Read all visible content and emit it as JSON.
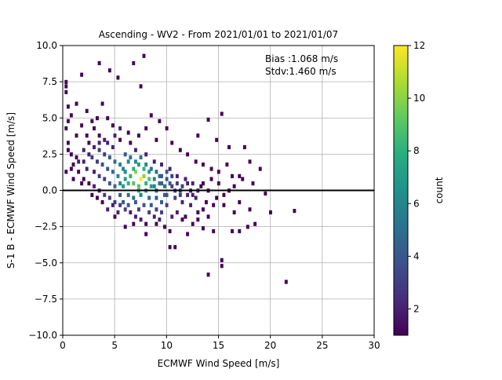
{
  "chart_data": {
    "type": "heatmap",
    "title": "Ascending - WV2 - From 2021/01/01 to 2021/01/07",
    "xlabel": "ECMWF Wind Speed [m/s]",
    "ylabel": "S-1 B - ECMWF Wind Speed [m/s]",
    "xlim": [
      0,
      30
    ],
    "ylim": [
      -10,
      10
    ],
    "x_ticks": [
      "0",
      "5",
      "10",
      "15",
      "20",
      "25",
      "30"
    ],
    "y_ticks": [
      "−10.0",
      "−7.5",
      "−5.0",
      "−2.5",
      "0.0",
      "2.5",
      "5.0",
      "7.5",
      "10.0"
    ],
    "grid": true,
    "reference_line_y": 0,
    "annotation": {
      "bias": "Bias :1.068 m/s",
      "stdv": "Stdv:1.460 m/s"
    },
    "colorbar": {
      "label": "count",
      "min": 1,
      "max": 12,
      "ticks": [
        "2",
        "4",
        "6",
        "8",
        "10",
        "12"
      ],
      "colormap": "viridis"
    },
    "bins": {
      "x_width": 0.25,
      "y_width": 0.25,
      "cells": [
        [
          0.3,
          7.5,
          1
        ],
        [
          0.3,
          7.2,
          1
        ],
        [
          0.3,
          6.8,
          1
        ],
        [
          0.5,
          5.8,
          1
        ],
        [
          0.8,
          5.2,
          1
        ],
        [
          0.5,
          4.8,
          1
        ],
        [
          0.3,
          4.3,
          1
        ],
        [
          1.8,
          8.0,
          1
        ],
        [
          3.5,
          8.8,
          1
        ],
        [
          4.5,
          8.3,
          1
        ],
        [
          6.8,
          8.8,
          1
        ],
        [
          7.8,
          9.3,
          1
        ],
        [
          5.3,
          7.8,
          1
        ],
        [
          7.5,
          7.2,
          1
        ],
        [
          1.3,
          6.0,
          1
        ],
        [
          2.3,
          5.5,
          1
        ],
        [
          3.8,
          6.0,
          1
        ],
        [
          4.3,
          5.0,
          1
        ],
        [
          8.5,
          5.2,
          1
        ],
        [
          9.3,
          4.8,
          1
        ],
        [
          14.0,
          4.9,
          1
        ],
        [
          15.3,
          5.3,
          1
        ],
        [
          10.0,
          4.3,
          1
        ],
        [
          13.0,
          3.8,
          1
        ],
        [
          14.8,
          3.5,
          1
        ],
        [
          16.0,
          3.0,
          1
        ],
        [
          17.5,
          3.0,
          1
        ],
        [
          18.0,
          2.0,
          1
        ],
        [
          19.0,
          1.5,
          1
        ],
        [
          17.0,
          1.0,
          1
        ],
        [
          18.3,
          0.5,
          1
        ],
        [
          19.5,
          -0.2,
          1
        ],
        [
          20.0,
          -1.5,
          1
        ],
        [
          22.3,
          -1.4,
          1
        ],
        [
          21.5,
          -6.3,
          1
        ],
        [
          14.0,
          -5.8,
          1
        ],
        [
          15.3,
          -4.8,
          1
        ],
        [
          15.3,
          -5.2,
          1
        ],
        [
          10.3,
          -3.9,
          1
        ],
        [
          10.8,
          -3.9,
          1
        ],
        [
          12.0,
          -3.0,
          1
        ],
        [
          13.5,
          -2.6,
          1
        ],
        [
          14.5,
          -2.8,
          1
        ],
        [
          16.3,
          -2.8,
          1
        ],
        [
          17.0,
          -2.8,
          1
        ],
        [
          17.8,
          -2.5,
          1
        ],
        [
          18.5,
          -2.3,
          1
        ],
        [
          18.0,
          -1.3,
          1
        ],
        [
          16.5,
          -1.5,
          1
        ],
        [
          15.5,
          -1.0,
          1
        ],
        [
          6.0,
          -2.5,
          1
        ],
        [
          8.0,
          -3.0,
          1
        ],
        [
          9.0,
          -2.3,
          1
        ],
        [
          5.0,
          -1.8,
          1
        ],
        [
          11.5,
          -2.0,
          1
        ],
        [
          13.0,
          -1.5,
          1
        ],
        [
          0.5,
          3.3,
          1
        ],
        [
          0.8,
          2.5,
          1
        ],
        [
          0.5,
          2.8,
          1
        ],
        [
          1.0,
          1.8,
          1
        ],
        [
          0.3,
          1.3,
          1
        ],
        [
          1.5,
          1.3,
          1
        ],
        [
          1.3,
          3.8,
          1
        ],
        [
          2.5,
          3.3,
          1
        ],
        [
          2.0,
          2.8,
          2
        ],
        [
          1.5,
          2.0,
          2
        ],
        [
          2.3,
          1.5,
          2
        ],
        [
          3.0,
          4.3,
          1
        ],
        [
          3.5,
          3.8,
          1
        ],
        [
          4.0,
          3.5,
          2
        ],
        [
          4.8,
          3.0,
          2
        ],
        [
          5.5,
          3.5,
          1
        ],
        [
          6.5,
          3.3,
          1
        ],
        [
          7.0,
          2.8,
          2
        ],
        [
          8.0,
          2.5,
          2
        ],
        [
          8.8,
          2.0,
          2
        ],
        [
          9.5,
          1.8,
          2
        ],
        [
          10.3,
          1.5,
          2
        ],
        [
          11.0,
          1.0,
          2
        ],
        [
          11.8,
          0.8,
          2
        ],
        [
          12.5,
          0.5,
          2
        ],
        [
          13.3,
          0.3,
          1
        ],
        [
          14.0,
          0.0,
          1
        ],
        [
          14.8,
          -0.5,
          1
        ],
        [
          2.8,
          2.3,
          3
        ],
        [
          3.3,
          2.0,
          3
        ],
        [
          3.8,
          1.8,
          4
        ],
        [
          4.3,
          1.5,
          4
        ],
        [
          4.8,
          1.3,
          5
        ],
        [
          5.0,
          2.0,
          5
        ],
        [
          5.3,
          1.0,
          6
        ],
        [
          5.8,
          1.5,
          6
        ],
        [
          6.0,
          0.8,
          7
        ],
        [
          6.3,
          2.0,
          6
        ],
        [
          6.5,
          1.0,
          8
        ],
        [
          6.8,
          0.5,
          9
        ],
        [
          7.0,
          1.3,
          10
        ],
        [
          7.3,
          0.3,
          9
        ],
        [
          7.5,
          0.8,
          12
        ],
        [
          7.8,
          1.0,
          10
        ],
        [
          8.0,
          0.5,
          8
        ],
        [
          8.3,
          1.3,
          7
        ],
        [
          8.5,
          0.3,
          7
        ],
        [
          8.8,
          0.8,
          6
        ],
        [
          9.0,
          0.0,
          5
        ],
        [
          9.3,
          1.0,
          5
        ],
        [
          9.5,
          0.5,
          4
        ],
        [
          9.8,
          -0.3,
          4
        ],
        [
          10.0,
          0.8,
          4
        ],
        [
          10.5,
          0.3,
          3
        ],
        [
          10.8,
          -0.5,
          3
        ],
        [
          11.3,
          0.0,
          3
        ],
        [
          11.5,
          -0.8,
          2
        ],
        [
          12.0,
          -0.3,
          2
        ],
        [
          12.3,
          -1.0,
          2
        ],
        [
          12.8,
          -0.5,
          2
        ],
        [
          13.5,
          -1.3,
          1
        ],
        [
          6.3,
          -0.3,
          5
        ],
        [
          6.8,
          -0.5,
          5
        ],
        [
          7.0,
          -0.8,
          4
        ],
        [
          7.5,
          -0.3,
          6
        ],
        [
          8.3,
          -0.5,
          5
        ],
        [
          8.5,
          -1.0,
          4
        ],
        [
          9.0,
          -1.3,
          3
        ],
        [
          9.5,
          -1.5,
          3
        ],
        [
          10.0,
          -1.0,
          3
        ],
        [
          10.5,
          -1.8,
          2
        ],
        [
          5.5,
          -0.3,
          4
        ],
        [
          5.0,
          0.3,
          5
        ],
        [
          4.5,
          0.5,
          4
        ],
        [
          4.0,
          0.8,
          3
        ],
        [
          3.5,
          1.0,
          3
        ],
        [
          3.0,
          1.3,
          2
        ],
        [
          5.8,
          0.3,
          7
        ],
        [
          6.3,
          0.5,
          8
        ],
        [
          7.3,
          1.8,
          7
        ],
        [
          7.8,
          1.5,
          8
        ],
        [
          8.3,
          0.8,
          9
        ],
        [
          6.8,
          1.5,
          8
        ],
        [
          5.5,
          1.8,
          6
        ],
        [
          4.5,
          2.3,
          4
        ],
        [
          4.0,
          2.5,
          3
        ],
        [
          3.5,
          2.8,
          3
        ],
        [
          3.0,
          3.0,
          2
        ],
        [
          6.0,
          2.5,
          4
        ],
        [
          6.5,
          2.3,
          5
        ],
        [
          7.0,
          2.0,
          6
        ],
        [
          7.5,
          2.3,
          5
        ],
        [
          8.0,
          1.8,
          6
        ],
        [
          8.5,
          1.5,
          5
        ],
        [
          9.0,
          1.3,
          5
        ],
        [
          9.5,
          1.0,
          4
        ],
        [
          10.0,
          1.3,
          4
        ],
        [
          10.5,
          1.0,
          3
        ],
        [
          11.0,
          0.5,
          3
        ],
        [
          11.5,
          0.3,
          3
        ],
        [
          12.0,
          0.5,
          2
        ],
        [
          12.5,
          -0.3,
          2
        ],
        [
          13.0,
          0.0,
          2
        ],
        [
          13.5,
          0.5,
          1
        ],
        [
          14.3,
          0.8,
          1
        ],
        [
          15.0,
          0.5,
          1
        ],
        [
          15.5,
          -0.3,
          1
        ],
        [
          16.0,
          0.0,
          1
        ],
        [
          16.5,
          0.3,
          1
        ],
        [
          17.0,
          -0.8,
          1
        ],
        [
          2.0,
          0.8,
          1
        ],
        [
          2.5,
          0.5,
          1
        ],
        [
          3.0,
          0.3,
          2
        ],
        [
          3.5,
          0.0,
          2
        ],
        [
          4.0,
          -0.3,
          3
        ],
        [
          4.5,
          -0.5,
          3
        ],
        [
          5.0,
          -0.8,
          3
        ],
        [
          5.5,
          -1.0,
          3
        ],
        [
          6.0,
          -1.3,
          3
        ],
        [
          6.5,
          -1.5,
          2
        ],
        [
          7.0,
          -1.8,
          2
        ],
        [
          7.5,
          -2.0,
          2
        ],
        [
          8.0,
          -2.3,
          1
        ],
        [
          4.3,
          -1.3,
          2
        ],
        [
          3.8,
          -0.8,
          1
        ],
        [
          5.3,
          -1.5,
          2
        ],
        [
          6.8,
          -2.3,
          1
        ],
        [
          7.3,
          -1.3,
          3
        ],
        [
          8.8,
          -1.8,
          2
        ],
        [
          9.3,
          -2.0,
          2
        ],
        [
          9.8,
          -2.5,
          1
        ],
        [
          10.3,
          -2.8,
          1
        ],
        [
          11.0,
          -1.5,
          2
        ],
        [
          11.8,
          -1.8,
          1
        ],
        [
          12.5,
          -2.3,
          1
        ],
        [
          13.0,
          -2.0,
          1
        ],
        [
          14.0,
          -1.8,
          1
        ],
        [
          14.5,
          -1.0,
          1
        ],
        [
          13.8,
          -0.8,
          1
        ],
        [
          2.3,
          3.8,
          1
        ],
        [
          1.8,
          4.5,
          1
        ],
        [
          2.8,
          4.8,
          1
        ],
        [
          3.3,
          5.0,
          1
        ],
        [
          4.8,
          4.5,
          1
        ],
        [
          5.5,
          4.3,
          2
        ],
        [
          6.3,
          4.0,
          1
        ],
        [
          7.3,
          3.8,
          1
        ],
        [
          8.0,
          4.3,
          1
        ],
        [
          9.0,
          3.5,
          1
        ],
        [
          10.5,
          3.3,
          1
        ],
        [
          11.3,
          2.8,
          1
        ],
        [
          12.0,
          2.5,
          1
        ],
        [
          12.8,
          2.0,
          1
        ],
        [
          13.5,
          1.8,
          1
        ],
        [
          14.3,
          1.5,
          1
        ],
        [
          15.0,
          1.3,
          1
        ],
        [
          15.8,
          1.8,
          1
        ],
        [
          16.3,
          1.0,
          1
        ],
        [
          17.3,
          0.8,
          1
        ],
        [
          5.0,
          3.8,
          2
        ],
        [
          4.3,
          3.3,
          2
        ],
        [
          3.5,
          3.3,
          2
        ],
        [
          2.5,
          2.5,
          2
        ],
        [
          2.0,
          2.0,
          2
        ],
        [
          1.3,
          2.3,
          1
        ],
        [
          0.8,
          1.5,
          1
        ],
        [
          1.0,
          0.8,
          1
        ],
        [
          1.8,
          0.5,
          1
        ],
        [
          2.8,
          -0.3,
          1
        ],
        [
          3.3,
          -0.5,
          1
        ],
        [
          4.8,
          -1.0,
          2
        ],
        [
          5.8,
          -0.8,
          4
        ],
        [
          6.3,
          -1.0,
          4
        ],
        [
          7.8,
          -1.0,
          4
        ],
        [
          8.3,
          -1.5,
          3
        ],
        [
          9.0,
          -0.5,
          4
        ],
        [
          9.5,
          -0.8,
          4
        ],
        [
          10.0,
          -0.3,
          4
        ],
        [
          10.8,
          0.0,
          3
        ],
        [
          11.3,
          -0.3,
          3
        ],
        [
          12.3,
          0.0,
          2
        ],
        [
          6.0,
          1.3,
          6
        ],
        [
          5.5,
          0.5,
          6
        ],
        [
          7.3,
          0.0,
          8
        ],
        [
          8.0,
          0.0,
          7
        ],
        [
          8.8,
          0.3,
          6
        ],
        [
          9.3,
          0.5,
          5
        ],
        [
          9.8,
          0.3,
          5
        ],
        [
          10.3,
          0.5,
          4
        ]
      ]
    }
  }
}
